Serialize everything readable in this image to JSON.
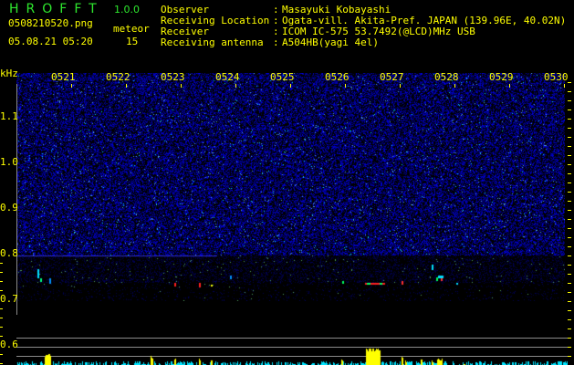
{
  "app": {
    "title": "HROFFT",
    "version": "1.0.0"
  },
  "file": {
    "name": "0508210520.png",
    "datetime": "05.08.21 05:20"
  },
  "meteor": {
    "label": "meteor",
    "count": "15"
  },
  "info": [
    {
      "label": "Observer",
      "value": "Masayuki Kobayashi"
    },
    {
      "label": "Receiving Location",
      "value": "Ogata-vill. Akita-Pref. JAPAN (139.96E, 40.02N)"
    },
    {
      "label": "Receiver",
      "value": "ICOM IC-575 53.7492(@LCD)MHz USB"
    },
    {
      "label": "Receiving antenna",
      "value": "A504HB(yagi 4el)"
    }
  ],
  "axis": {
    "y_unit": "kHz",
    "y_ticks": [
      "1.1",
      "1.0",
      "0.9",
      "0.8",
      "0.7",
      "0.6"
    ],
    "x_ticks": [
      "0521",
      "0522",
      "0523",
      "0524",
      "0525",
      "0526",
      "0527",
      "0528",
      "0529",
      "0530"
    ]
  },
  "colors": {
    "text": "#ffff00",
    "title": "#2ee82e",
    "noise": "#1a1aff",
    "histogram_low": "#00e5ff",
    "histogram_high": "#ffff00",
    "grid": "#8a8a8a"
  }
}
